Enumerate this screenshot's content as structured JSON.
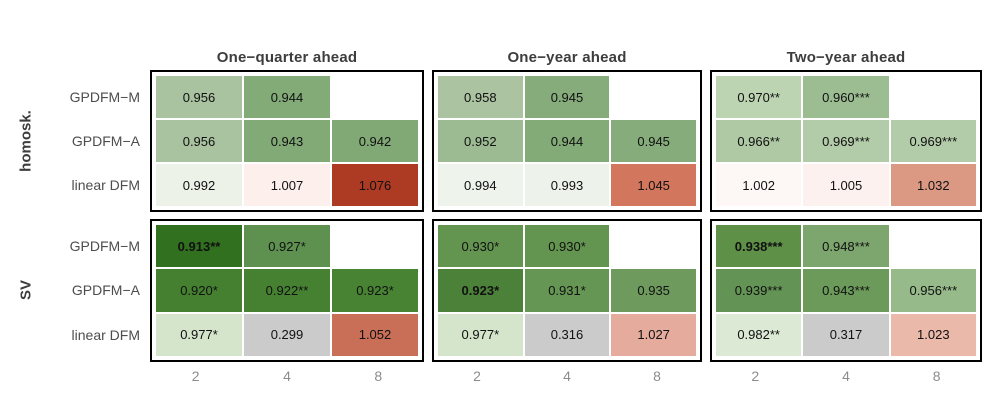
{
  "figure": {
    "col_titles": [
      "One−quarter ahead",
      "One−year ahead",
      "Two−year ahead"
    ],
    "row_groups": [
      "homosk.",
      "SV"
    ],
    "row_labels": [
      "GPDFM−M",
      "GPDFM−A",
      "linear DFM"
    ],
    "x_ticks": [
      "2",
      "4",
      "8"
    ]
  },
  "chart_data": {
    "type": "heatmap",
    "title": "",
    "xlabel": "",
    "ylabel": "",
    "facet_columns": [
      "One−quarter ahead",
      "One−year ahead",
      "Two−year ahead"
    ],
    "facet_rows": [
      "homosk.",
      "SV"
    ],
    "y_categories": [
      "GPDFM−M",
      "GPDFM−A",
      "linear DFM"
    ],
    "x_categories": [
      "2",
      "4",
      "8"
    ],
    "color_scale": {
      "low_green": "#31701f",
      "mid_white": "#ffffff",
      "high_red": "#ad3a23",
      "neutral_gray": "#cbcbcb"
    },
    "legend_position": "none",
    "grid": false,
    "panels": [
      {
        "facet_row": "homosk.",
        "facet_col": "One−quarter ahead",
        "rows": [
          [
            {
              "text": "0.956",
              "value": 0.956,
              "color": "#a9c2a0",
              "bold": false
            },
            {
              "text": "0.944",
              "value": 0.944,
              "color": "#83ab78",
              "bold": false
            },
            null
          ],
          [
            {
              "text": "0.956",
              "value": 0.956,
              "color": "#a9c2a0",
              "bold": false
            },
            {
              "text": "0.943",
              "value": 0.943,
              "color": "#81aa76",
              "bold": false
            },
            {
              "text": "0.942",
              "value": 0.942,
              "color": "#80a975",
              "bold": false
            }
          ],
          [
            {
              "text": "0.992",
              "value": 0.992,
              "color": "#ecf2e8",
              "bold": false
            },
            {
              "text": "1.007",
              "value": 1.007,
              "color": "#fcefec",
              "bold": false
            },
            {
              "text": "1.076",
              "value": 1.076,
              "color": "#ad3a23",
              "bold": false
            }
          ]
        ]
      },
      {
        "facet_row": "homosk.",
        "facet_col": "One−year ahead",
        "rows": [
          [
            {
              "text": "0.958",
              "value": 0.958,
              "color": "#abc3a1",
              "bold": false
            },
            {
              "text": "0.945",
              "value": 0.945,
              "color": "#85ac7a",
              "bold": false
            },
            null
          ],
          [
            {
              "text": "0.952",
              "value": 0.952,
              "color": "#9dbb93",
              "bold": false
            },
            {
              "text": "0.944",
              "value": 0.944,
              "color": "#83ab78",
              "bold": false
            },
            {
              "text": "0.945",
              "value": 0.945,
              "color": "#85ac7a",
              "bold": false
            }
          ],
          [
            {
              "text": "0.994",
              "value": 0.994,
              "color": "#eef3eb",
              "bold": false
            },
            {
              "text": "0.993",
              "value": 0.993,
              "color": "#edf3ea",
              "bold": false
            },
            {
              "text": "1.045",
              "value": 1.045,
              "color": "#d2775d",
              "bold": false
            }
          ]
        ]
      },
      {
        "facet_row": "homosk.",
        "facet_col": "Two−year ahead",
        "rows": [
          [
            {
              "text": "0.970**",
              "value": 0.97,
              "color": "#bdd4b3",
              "bold": false
            },
            {
              "text": "0.960***",
              "value": 0.96,
              "color": "#9cbc92",
              "bold": false
            },
            null
          ],
          [
            {
              "text": "0.966**",
              "value": 0.966,
              "color": "#aec9a4",
              "bold": false
            },
            {
              "text": "0.969***",
              "value": 0.969,
              "color": "#b2cba8",
              "bold": false
            },
            {
              "text": "0.969***",
              "value": 0.969,
              "color": "#b2cba8",
              "bold": false
            }
          ],
          [
            {
              "text": "1.002",
              "value": 1.002,
              "color": "#fdf8f6",
              "bold": false
            },
            {
              "text": "1.005",
              "value": 1.005,
              "color": "#fcf1ee",
              "bold": false
            },
            {
              "text": "1.032",
              "value": 1.032,
              "color": "#db9983",
              "bold": false
            }
          ]
        ]
      },
      {
        "facet_row": "SV",
        "facet_col": "One−quarter ahead",
        "rows": [
          [
            {
              "text": "0.913**",
              "value": 0.913,
              "color": "#31701f",
              "bold": true
            },
            {
              "text": "0.927*",
              "value": 0.927,
              "color": "#5e9150",
              "bold": false
            },
            null
          ],
          [
            {
              "text": "0.920*",
              "value": 0.92,
              "color": "#448030",
              "bold": false
            },
            {
              "text": "0.922**",
              "value": 0.922,
              "color": "#468132",
              "bold": false
            },
            {
              "text": "0.923*",
              "value": 0.923,
              "color": "#488334",
              "bold": false
            }
          ],
          [
            {
              "text": "0.977*",
              "value": 0.977,
              "color": "#d5e5cc",
              "bold": false
            },
            {
              "text": "0.299",
              "value": 0.299,
              "color": "#cbcbcb",
              "bold": false
            },
            {
              "text": "1.052",
              "value": 1.052,
              "color": "#c96f58",
              "bold": false
            }
          ]
        ]
      },
      {
        "facet_row": "SV",
        "facet_col": "One−year ahead",
        "rows": [
          [
            {
              "text": "0.930*",
              "value": 0.93,
              "color": "#649550",
              "bold": false
            },
            {
              "text": "0.930*",
              "value": 0.93,
              "color": "#649550",
              "bold": false
            },
            null
          ],
          [
            {
              "text": "0.923*",
              "value": 0.923,
              "color": "#4c8139",
              "bold": true
            },
            {
              "text": "0.931*",
              "value": 0.931,
              "color": "#669653",
              "bold": false
            },
            {
              "text": "0.935",
              "value": 0.935,
              "color": "#6e9b5d",
              "bold": false
            }
          ],
          [
            {
              "text": "0.977*",
              "value": 0.977,
              "color": "#d5e5cc",
              "bold": false
            },
            {
              "text": "0.316",
              "value": 0.316,
              "color": "#cbcbcb",
              "bold": false
            },
            {
              "text": "1.027",
              "value": 1.027,
              "color": "#e5ab9c",
              "bold": false
            }
          ]
        ]
      },
      {
        "facet_row": "SV",
        "facet_col": "Two−year ahead",
        "rows": [
          [
            {
              "text": "0.938***",
              "value": 0.938,
              "color": "#5e9048",
              "bold": true
            },
            {
              "text": "0.948***",
              "value": 0.948,
              "color": "#7da56e",
              "bold": false
            },
            null
          ],
          [
            {
              "text": "0.939***",
              "value": 0.939,
              "color": "#649455",
              "bold": false
            },
            {
              "text": "0.943***",
              "value": 0.943,
              "color": "#6b9a5b",
              "bold": false
            },
            {
              "text": "0.956***",
              "value": 0.956,
              "color": "#97ba8b",
              "bold": false
            }
          ],
          [
            {
              "text": "0.982**",
              "value": 0.982,
              "color": "#dcead5",
              "bold": false
            },
            {
              "text": "0.317",
              "value": 0.317,
              "color": "#cbcbcb",
              "bold": false
            },
            {
              "text": "1.023",
              "value": 1.023,
              "color": "#eab9aa",
              "bold": false
            }
          ]
        ]
      }
    ]
  }
}
